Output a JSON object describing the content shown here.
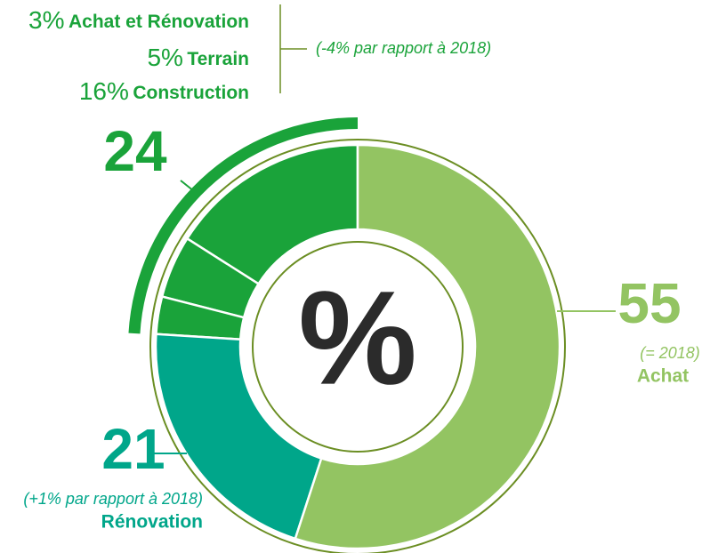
{
  "chart_data": {
    "type": "donut",
    "center_label": "%",
    "categories": [
      "Achat",
      "Rénovation",
      "Achat et Rénovation",
      "Terrain",
      "Construction"
    ],
    "values": [
      55,
      21,
      3,
      5,
      16
    ],
    "value_labels": [
      "55",
      "21",
      "3%",
      "5%",
      "16%"
    ],
    "colors": [
      "#93c462",
      "#00a68a",
      "#1aa33a",
      "#1aa33a",
      "#1aa33a"
    ],
    "annotations": [
      "(= 2018)",
      "(+1% par rapport à 2018)"
    ],
    "group": {
      "value": 24,
      "note": "(-4%  par rapport à 2018)",
      "color": "#1aa33a"
    }
  }
}
